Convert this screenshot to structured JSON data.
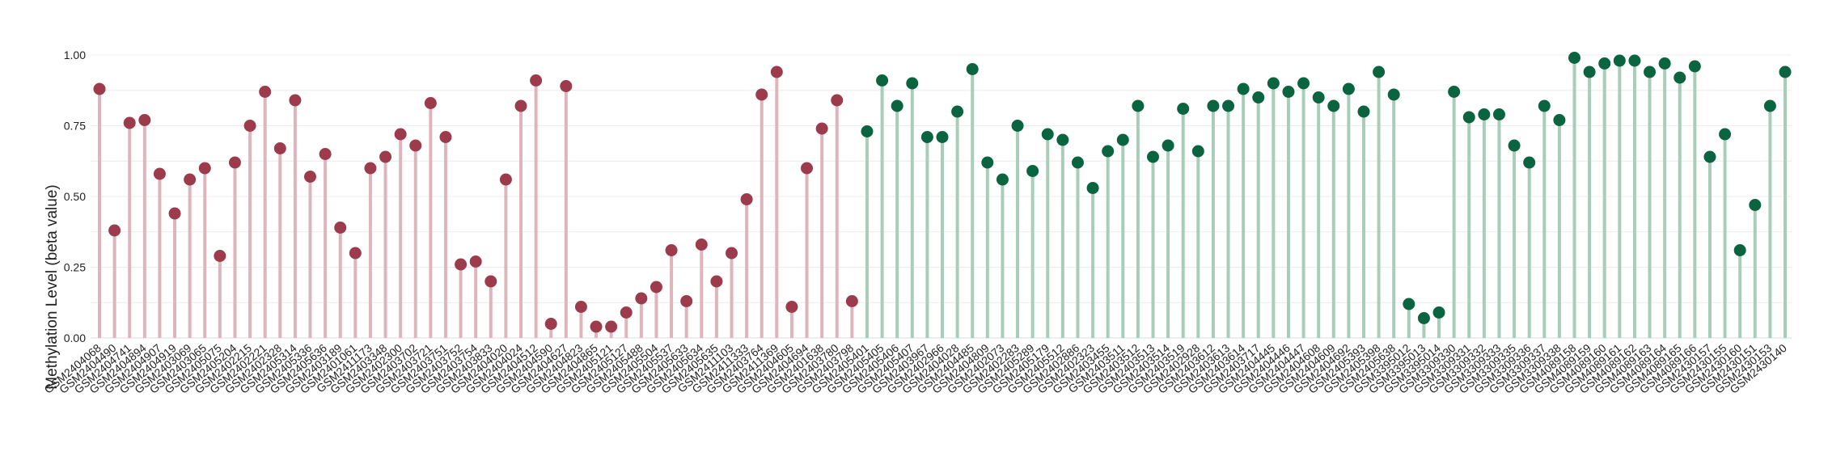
{
  "chart_data": {
    "type": "lollipop",
    "title": "",
    "xlabel": "",
    "ylabel": "Methylation Level (beta value)",
    "ylim": [
      0,
      1
    ],
    "yticks": [
      "0.00",
      "0.25",
      "0.50",
      "0.75",
      "1.00"
    ],
    "grid": true,
    "legend": "none",
    "colors": {
      "group_a_stem": "#dfb5bd",
      "group_a_dot": "#9b3b4b",
      "group_b_stem": "#a8cdb9",
      "group_b_dot": "#0b6440",
      "grid": "#ececec",
      "baseline": "#dddddd"
    },
    "points": [
      {
        "label": "GSM2404068",
        "value": 0.88,
        "group": "a"
      },
      {
        "label": "GSM2404490",
        "value": 0.38,
        "group": "a"
      },
      {
        "label": "GSM2404741",
        "value": 0.76,
        "group": "a"
      },
      {
        "label": "GSM2404894",
        "value": 0.77,
        "group": "a"
      },
      {
        "label": "GSM2404907",
        "value": 0.58,
        "group": "a"
      },
      {
        "label": "GSM2404919",
        "value": 0.44,
        "group": "a"
      },
      {
        "label": "GSM2403069",
        "value": 0.56,
        "group": "a"
      },
      {
        "label": "GSM2403065",
        "value": 0.6,
        "group": "a"
      },
      {
        "label": "GSM2405075",
        "value": 0.29,
        "group": "a"
      },
      {
        "label": "GSM2405204",
        "value": 0.62,
        "group": "a"
      },
      {
        "label": "GSM2402215",
        "value": 0.75,
        "group": "a"
      },
      {
        "label": "GSM2402221",
        "value": 0.87,
        "group": "a"
      },
      {
        "label": "GSM2402328",
        "value": 0.67,
        "group": "a"
      },
      {
        "label": "GSM2405314",
        "value": 0.84,
        "group": "a"
      },
      {
        "label": "GSM2405336",
        "value": 0.57,
        "group": "a"
      },
      {
        "label": "GSM2405636",
        "value": 0.65,
        "group": "a"
      },
      {
        "label": "GSM2403189",
        "value": 0.39,
        "group": "a"
      },
      {
        "label": "GSM2401061",
        "value": 0.3,
        "group": "a"
      },
      {
        "label": "GSM2411173",
        "value": 0.6,
        "group": "a"
      },
      {
        "label": "GSM2403348",
        "value": 0.64,
        "group": "a"
      },
      {
        "label": "GSM2402300",
        "value": 0.72,
        "group": "a"
      },
      {
        "label": "GSM2403702",
        "value": 0.68,
        "group": "a"
      },
      {
        "label": "GSM2403721",
        "value": 0.83,
        "group": "a"
      },
      {
        "label": "GSM2403751",
        "value": 0.71,
        "group": "a"
      },
      {
        "label": "GSM2403752",
        "value": 0.26,
        "group": "a"
      },
      {
        "label": "GSM2403754",
        "value": 0.27,
        "group": "a"
      },
      {
        "label": "GSM2403833",
        "value": 0.2,
        "group": "a"
      },
      {
        "label": "GSM2404020",
        "value": 0.56,
        "group": "a"
      },
      {
        "label": "GSM2404024",
        "value": 0.82,
        "group": "a"
      },
      {
        "label": "GSM2404512",
        "value": 0.91,
        "group": "a"
      },
      {
        "label": "GSM2404590",
        "value": 0.05,
        "group": "a"
      },
      {
        "label": "GSM2404627",
        "value": 0.89,
        "group": "a"
      },
      {
        "label": "GSM2404823",
        "value": 0.11,
        "group": "a"
      },
      {
        "label": "GSM2404865",
        "value": 0.04,
        "group": "a"
      },
      {
        "label": "GSM2405121",
        "value": 0.04,
        "group": "a"
      },
      {
        "label": "GSM2405127",
        "value": 0.09,
        "group": "a"
      },
      {
        "label": "GSM2405488",
        "value": 0.14,
        "group": "a"
      },
      {
        "label": "GSM2405504",
        "value": 0.18,
        "group": "a"
      },
      {
        "label": "GSM2405537",
        "value": 0.31,
        "group": "a"
      },
      {
        "label": "GSM2405633",
        "value": 0.13,
        "group": "a"
      },
      {
        "label": "GSM2405634",
        "value": 0.33,
        "group": "a"
      },
      {
        "label": "GSM2405635",
        "value": 0.2,
        "group": "a"
      },
      {
        "label": "GSM2411103",
        "value": 0.3,
        "group": "a"
      },
      {
        "label": "GSM2411333",
        "value": 0.49,
        "group": "a"
      },
      {
        "label": "GSM2403764",
        "value": 0.86,
        "group": "a"
      },
      {
        "label": "GSM2411369",
        "value": 0.94,
        "group": "a"
      },
      {
        "label": "GSM2404605",
        "value": 0.11,
        "group": "a"
      },
      {
        "label": "GSM2404694",
        "value": 0.6,
        "group": "a"
      },
      {
        "label": "GSM2401638",
        "value": 0.74,
        "group": "a"
      },
      {
        "label": "GSM2403780",
        "value": 0.84,
        "group": "a"
      },
      {
        "label": "GSM2403798",
        "value": 0.13,
        "group": "a"
      },
      {
        "label": "GSM2405401",
        "value": 0.73,
        "group": "b"
      },
      {
        "label": "GSM2405405",
        "value": 0.91,
        "group": "b"
      },
      {
        "label": "GSM2405406",
        "value": 0.82,
        "group": "b"
      },
      {
        "label": "GSM2405407",
        "value": 0.9,
        "group": "b"
      },
      {
        "label": "GSM2403967",
        "value": 0.71,
        "group": "b"
      },
      {
        "label": "GSM2402966",
        "value": 0.71,
        "group": "b"
      },
      {
        "label": "GSM2404028",
        "value": 0.8,
        "group": "b"
      },
      {
        "label": "GSM2404485",
        "value": 0.95,
        "group": "b"
      },
      {
        "label": "GSM2404809",
        "value": 0.62,
        "group": "b"
      },
      {
        "label": "GSM2402073",
        "value": 0.56,
        "group": "b"
      },
      {
        "label": "GSM2402283",
        "value": 0.75,
        "group": "b"
      },
      {
        "label": "GSM2405289",
        "value": 0.59,
        "group": "b"
      },
      {
        "label": "GSM2405179",
        "value": 0.72,
        "group": "b"
      },
      {
        "label": "GSM2405512",
        "value": 0.7,
        "group": "b"
      },
      {
        "label": "GSM2402886",
        "value": 0.62,
        "group": "b"
      },
      {
        "label": "GSM2402323",
        "value": 0.53,
        "group": "b"
      },
      {
        "label": "GSM2403455",
        "value": 0.66,
        "group": "b"
      },
      {
        "label": "GSM2403511",
        "value": 0.7,
        "group": "b"
      },
      {
        "label": "GSM2403512",
        "value": 0.82,
        "group": "b"
      },
      {
        "label": "GSM2403513",
        "value": 0.64,
        "group": "b"
      },
      {
        "label": "GSM2403514",
        "value": 0.68,
        "group": "b"
      },
      {
        "label": "GSM2403519",
        "value": 0.81,
        "group": "b"
      },
      {
        "label": "GSM2402928",
        "value": 0.66,
        "group": "b"
      },
      {
        "label": "GSM2403612",
        "value": 0.82,
        "group": "b"
      },
      {
        "label": "GSM2403613",
        "value": 0.82,
        "group": "b"
      },
      {
        "label": "GSM2403614",
        "value": 0.88,
        "group": "b"
      },
      {
        "label": "GSM2403717",
        "value": 0.85,
        "group": "b"
      },
      {
        "label": "GSM2404445",
        "value": 0.9,
        "group": "b"
      },
      {
        "label": "GSM2404446",
        "value": 0.87,
        "group": "b"
      },
      {
        "label": "GSM2404447",
        "value": 0.9,
        "group": "b"
      },
      {
        "label": "GSM2404608",
        "value": 0.85,
        "group": "b"
      },
      {
        "label": "GSM2404609",
        "value": 0.82,
        "group": "b"
      },
      {
        "label": "GSM2404692",
        "value": 0.88,
        "group": "b"
      },
      {
        "label": "GSM2405393",
        "value": 0.8,
        "group": "b"
      },
      {
        "label": "GSM2405398",
        "value": 0.94,
        "group": "b"
      },
      {
        "label": "GSM2405638",
        "value": 0.86,
        "group": "b"
      },
      {
        "label": "GSM3395012",
        "value": 0.12,
        "group": "b"
      },
      {
        "label": "GSM3395013",
        "value": 0.07,
        "group": "b"
      },
      {
        "label": "GSM3395014",
        "value": 0.09,
        "group": "b"
      },
      {
        "label": "GSM3309330",
        "value": 0.87,
        "group": "b"
      },
      {
        "label": "GSM3309331",
        "value": 0.78,
        "group": "b"
      },
      {
        "label": "GSM3309332",
        "value": 0.79,
        "group": "b"
      },
      {
        "label": "GSM3309333",
        "value": 0.79,
        "group": "b"
      },
      {
        "label": "GSM3309335",
        "value": 0.68,
        "group": "b"
      },
      {
        "label": "GSM3309336",
        "value": 0.62,
        "group": "b"
      },
      {
        "label": "GSM3309337",
        "value": 0.82,
        "group": "b"
      },
      {
        "label": "GSM3309338",
        "value": 0.77,
        "group": "b"
      },
      {
        "label": "GSM4089158",
        "value": 0.99,
        "group": "b"
      },
      {
        "label": "GSM4089159",
        "value": 0.94,
        "group": "b"
      },
      {
        "label": "GSM4089160",
        "value": 0.97,
        "group": "b"
      },
      {
        "label": "GSM4089161",
        "value": 0.98,
        "group": "b"
      },
      {
        "label": "GSM4089162",
        "value": 0.98,
        "group": "b"
      },
      {
        "label": "GSM4089163",
        "value": 0.94,
        "group": "b"
      },
      {
        "label": "GSM4089164",
        "value": 0.97,
        "group": "b"
      },
      {
        "label": "GSM4089165",
        "value": 0.92,
        "group": "b"
      },
      {
        "label": "GSM4089166",
        "value": 0.96,
        "group": "b"
      },
      {
        "label": "GSM2430157",
        "value": 0.64,
        "group": "b"
      },
      {
        "label": "GSM2430155",
        "value": 0.72,
        "group": "b"
      },
      {
        "label": "GSM2430160",
        "value": 0.31,
        "group": "b"
      },
      {
        "label": "GSM2430151",
        "value": 0.47,
        "group": "b"
      },
      {
        "label": "GSM2430153",
        "value": 0.82,
        "group": "b"
      },
      {
        "label": "GSM2430140",
        "value": 0.94,
        "group": "b"
      }
    ]
  }
}
